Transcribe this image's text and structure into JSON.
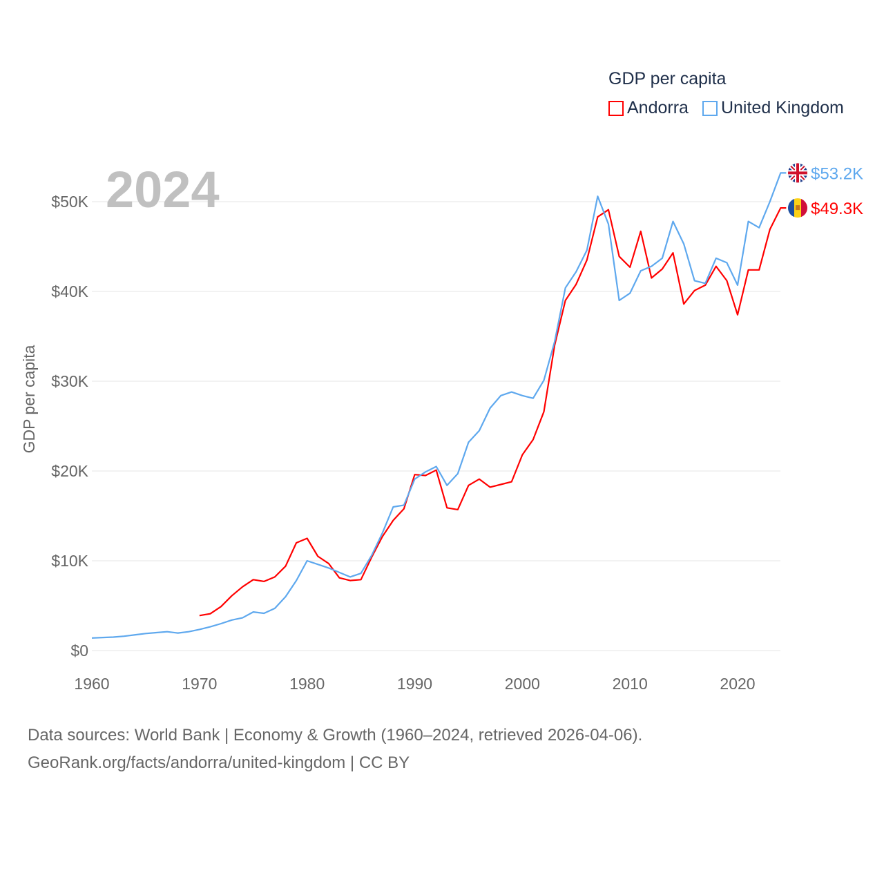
{
  "chart_data": {
    "type": "line",
    "title": "GDP per capita",
    "year_label": "2024",
    "ylabel": "GDP per capita",
    "xlabel": "",
    "xlim": [
      1960,
      2024
    ],
    "ylim": [
      0,
      50000
    ],
    "x_ticks": [
      "1960",
      "1970",
      "1980",
      "1990",
      "2000",
      "2010",
      "2020"
    ],
    "x_tick_values": [
      1960,
      1970,
      1980,
      1990,
      2000,
      2010,
      2020
    ],
    "y_ticks": [
      "$0",
      "$10K",
      "$20K",
      "$30K",
      "$40K",
      "$50K"
    ],
    "y_tick_values": [
      0,
      10000,
      20000,
      30000,
      40000,
      50000
    ],
    "grid": true,
    "legend_position": "top-right",
    "series": [
      {
        "name": "Andorra",
        "color": "#ff0000",
        "flag": "andorra-flag",
        "end_label": "$49.3K",
        "start_year": 1970,
        "values": [
          3.9,
          4.1,
          4.9,
          6.1,
          7.1,
          7.9,
          7.7,
          8.2,
          9.4,
          12.0,
          12.5,
          10.5,
          9.7,
          8.1,
          7.8,
          7.9,
          10.4,
          12.7,
          14.5,
          15.8,
          19.6,
          19.5,
          20.1,
          15.9,
          15.7,
          18.4,
          19.1,
          18.2,
          18.5,
          18.8,
          21.8,
          23.5,
          26.6,
          34.0,
          39.0,
          40.8,
          43.5,
          48.3,
          49.1,
          43.9,
          42.7,
          46.7,
          41.5,
          42.5,
          44.3,
          38.6,
          40.1,
          40.7,
          42.8,
          41.2,
          37.4,
          42.4,
          42.4,
          46.9,
          49.3
        ],
        "unit": "thousand USD"
      },
      {
        "name": "United Kingdom",
        "color": "#5ea8ee",
        "flag": "uk-flag",
        "end_label": "$53.2K",
        "start_year": 1960,
        "values": [
          1.4,
          1.45,
          1.5,
          1.6,
          1.75,
          1.9,
          2.0,
          2.1,
          1.95,
          2.1,
          2.35,
          2.65,
          3.0,
          3.4,
          3.65,
          4.3,
          4.15,
          4.7,
          6.0,
          7.8,
          10.0,
          9.6,
          9.2,
          8.7,
          8.2,
          8.6,
          10.6,
          13.1,
          16.0,
          16.2,
          19.1,
          19.9,
          20.5,
          18.4,
          19.7,
          23.2,
          24.5,
          27.0,
          28.4,
          28.8,
          28.4,
          28.1,
          30.1,
          34.4,
          40.4,
          42.2,
          44.6,
          50.6,
          47.5,
          39.0,
          39.8,
          42.3,
          42.8,
          43.7,
          47.8,
          45.3,
          41.2,
          40.9,
          43.7,
          43.2,
          40.7,
          47.8,
          47.1,
          50.0,
          53.2
        ],
        "unit": "thousand USD"
      }
    ]
  },
  "legend": {
    "title": "GDP per capita",
    "items": [
      "Andorra",
      "United Kingdom"
    ]
  },
  "footer": {
    "line1": "Data sources: World Bank | Economy & Growth (1960–2024, retrieved 2026-04-06).",
    "line2": "GeoRank.org/facts/andorra/united-kingdom | CC BY"
  }
}
